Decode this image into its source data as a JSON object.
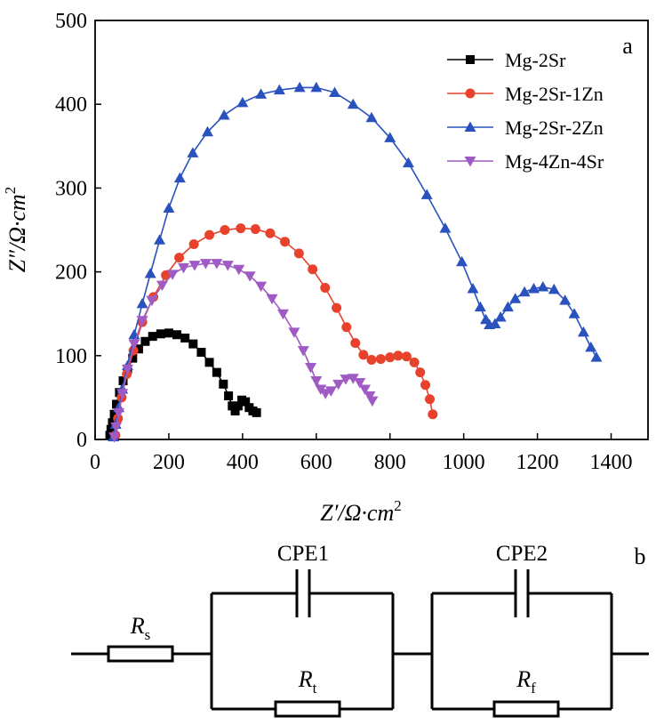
{
  "chart_data": {
    "type": "scatter",
    "panel_label": "a",
    "xlabel": {
      "prefix": "Z′/Ω·cm",
      "sup": "2"
    },
    "ylabel": {
      "prefix": "Z″/Ω·cm",
      "sup": "2"
    },
    "xlim": [
      0,
      1500
    ],
    "ylim": [
      0,
      500
    ],
    "xticks": [
      0,
      200,
      400,
      600,
      800,
      1000,
      1200,
      1400
    ],
    "yticks": [
      0,
      100,
      200,
      300,
      400,
      500
    ],
    "legend_position": "top-right",
    "series": [
      {
        "name": "Mg-2Sr",
        "color": "#000000",
        "marker": "square",
        "points": [
          [
            40,
            5
          ],
          [
            43,
            12
          ],
          [
            47,
            20
          ],
          [
            52,
            30
          ],
          [
            58,
            42
          ],
          [
            66,
            56
          ],
          [
            76,
            70
          ],
          [
            88,
            84
          ],
          [
            102,
            97
          ],
          [
            118,
            108
          ],
          [
            136,
            117
          ],
          [
            156,
            123
          ],
          [
            178,
            126
          ],
          [
            200,
            127
          ],
          [
            222,
            125
          ],
          [
            244,
            121
          ],
          [
            266,
            114
          ],
          [
            288,
            104
          ],
          [
            310,
            92
          ],
          [
            330,
            80
          ],
          [
            348,
            66
          ],
          [
            362,
            52
          ],
          [
            372,
            40
          ],
          [
            380,
            34
          ],
          [
            388,
            40
          ],
          [
            398,
            47
          ],
          [
            408,
            45
          ],
          [
            418,
            38
          ],
          [
            428,
            34
          ],
          [
            438,
            32
          ]
        ]
      },
      {
        "name": "Mg-2Sr-1Zn",
        "color": "#e8412c",
        "marker": "circle",
        "points": [
          [
            55,
            5
          ],
          [
            62,
            25
          ],
          [
            72,
            50
          ],
          [
            86,
            78
          ],
          [
            104,
            106
          ],
          [
            128,
            140
          ],
          [
            158,
            170
          ],
          [
            192,
            196
          ],
          [
            228,
            217
          ],
          [
            268,
            233
          ],
          [
            310,
            244
          ],
          [
            352,
            250
          ],
          [
            395,
            252
          ],
          [
            435,
            251
          ],
          [
            475,
            246
          ],
          [
            515,
            236
          ],
          [
            553,
            222
          ],
          [
            590,
            203
          ],
          [
            624,
            181
          ],
          [
            655,
            157
          ],
          [
            682,
            134
          ],
          [
            706,
            115
          ],
          [
            728,
            101
          ],
          [
            750,
            95
          ],
          [
            775,
            96
          ],
          [
            800,
            98
          ],
          [
            822,
            100
          ],
          [
            845,
            99
          ],
          [
            866,
            92
          ],
          [
            882,
            80
          ],
          [
            896,
            65
          ],
          [
            908,
            48
          ],
          [
            916,
            30
          ]
        ]
      },
      {
        "name": "Mg-2Sr-2Zn",
        "color": "#2a52be",
        "marker": "triangle-up",
        "points": [
          [
            50,
            3
          ],
          [
            56,
            18
          ],
          [
            64,
            38
          ],
          [
            74,
            60
          ],
          [
            88,
            88
          ],
          [
            106,
            125
          ],
          [
            128,
            162
          ],
          [
            150,
            198
          ],
          [
            175,
            238
          ],
          [
            200,
            276
          ],
          [
            230,
            312
          ],
          [
            265,
            342
          ],
          [
            305,
            367
          ],
          [
            350,
            387
          ],
          [
            400,
            402
          ],
          [
            450,
            412
          ],
          [
            500,
            417
          ],
          [
            555,
            420
          ],
          [
            600,
            420
          ],
          [
            650,
            414
          ],
          [
            700,
            400
          ],
          [
            750,
            384
          ],
          [
            800,
            360
          ],
          [
            850,
            330
          ],
          [
            900,
            292
          ],
          [
            950,
            252
          ],
          [
            995,
            212
          ],
          [
            1025,
            180
          ],
          [
            1045,
            158
          ],
          [
            1060,
            143
          ],
          [
            1070,
            137
          ],
          [
            1085,
            138
          ],
          [
            1100,
            146
          ],
          [
            1120,
            158
          ],
          [
            1140,
            168
          ],
          [
            1165,
            176
          ],
          [
            1190,
            180
          ],
          [
            1215,
            182
          ],
          [
            1245,
            179
          ],
          [
            1275,
            166
          ],
          [
            1300,
            150
          ],
          [
            1325,
            128
          ],
          [
            1345,
            110
          ],
          [
            1360,
            98
          ]
        ]
      },
      {
        "name": "Mg-4Zn-4Sr",
        "color": "#a05ac4",
        "marker": "triangle-down",
        "points": [
          [
            52,
            3
          ],
          [
            57,
            15
          ],
          [
            64,
            32
          ],
          [
            74,
            55
          ],
          [
            88,
            84
          ],
          [
            106,
            114
          ],
          [
            128,
            142
          ],
          [
            154,
            166
          ],
          [
            182,
            184
          ],
          [
            210,
            197
          ],
          [
            240,
            205
          ],
          [
            270,
            208
          ],
          [
            300,
            210
          ],
          [
            330,
            210
          ],
          [
            360,
            208
          ],
          [
            390,
            203
          ],
          [
            420,
            195
          ],
          [
            450,
            183
          ],
          [
            480,
            168
          ],
          [
            510,
            150
          ],
          [
            540,
            128
          ],
          [
            565,
            106
          ],
          [
            585,
            86
          ],
          [
            600,
            70
          ],
          [
            612,
            60
          ],
          [
            625,
            55
          ],
          [
            640,
            58
          ],
          [
            660,
            66
          ],
          [
            680,
            72
          ],
          [
            700,
            73
          ],
          [
            718,
            68
          ],
          [
            732,
            60
          ],
          [
            745,
            52
          ],
          [
            752,
            46
          ]
        ]
      }
    ]
  },
  "circuit": {
    "panel_label": "b",
    "elements": [
      {
        "kind": "resistor",
        "symbol": "R",
        "sub": "s"
      },
      {
        "kind": "cpe",
        "label": "CPE1"
      },
      {
        "kind": "resistor",
        "symbol": "R",
        "sub": "t"
      },
      {
        "kind": "cpe",
        "label": "CPE2"
      },
      {
        "kind": "resistor",
        "symbol": "R",
        "sub": "f"
      }
    ]
  }
}
